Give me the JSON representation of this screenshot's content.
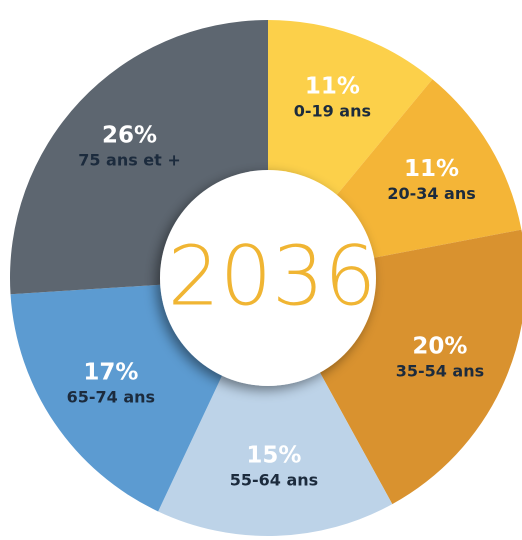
{
  "chart_data": {
    "type": "donut",
    "center_label": "2036",
    "categories": [
      "0-19 ans",
      "20-34 ans",
      "35-54 ans",
      "55-64 ans",
      "65-74 ans",
      "75 ans et +"
    ],
    "values": [
      11,
      11,
      20,
      15,
      17,
      26
    ],
    "value_labels": [
      "11%",
      "11%",
      "20%",
      "15%",
      "17%",
      "26%"
    ],
    "colors": [
      "#fcd04a",
      "#f4b537",
      "#d9922f",
      "#bdd3e8",
      "#5c9bd1",
      "#5d6670"
    ]
  }
}
